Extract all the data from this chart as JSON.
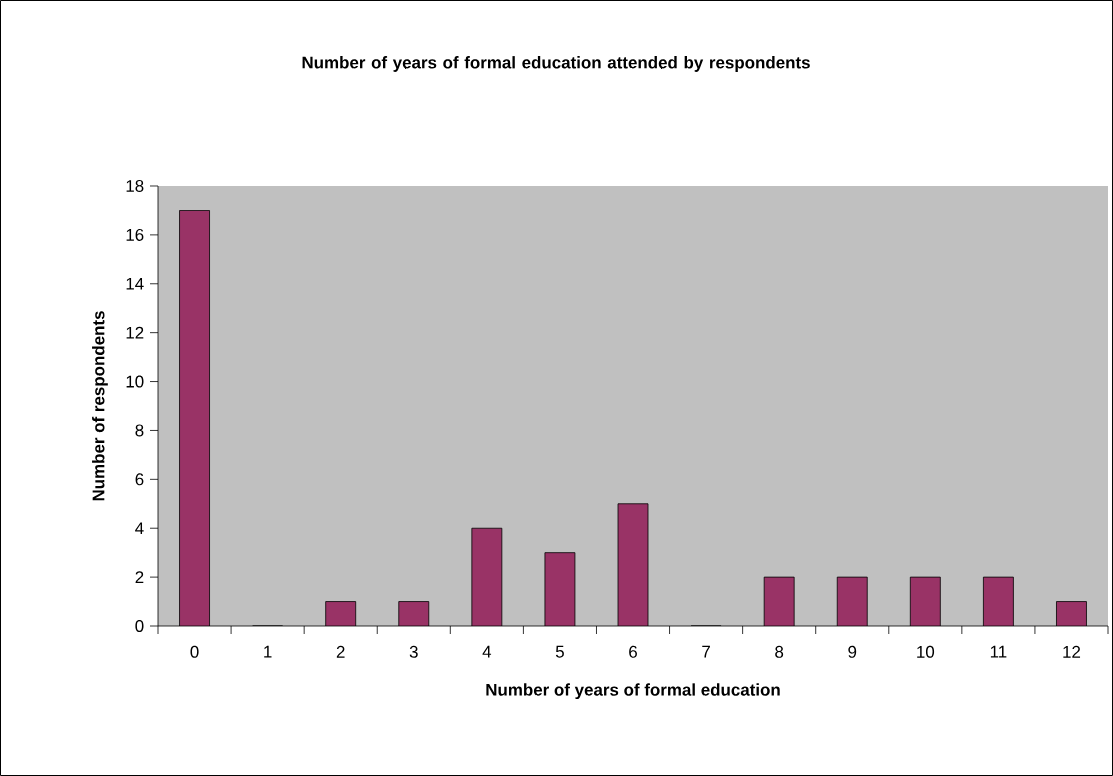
{
  "chart_data": {
    "type": "bar",
    "title": "Number of years of formal education attended by respondents",
    "xlabel": "Number of years of formal education",
    "ylabel": "Number of respondents",
    "categories": [
      "0",
      "1",
      "2",
      "3",
      "4",
      "5",
      "6",
      "7",
      "8",
      "9",
      "10",
      "11",
      "12"
    ],
    "values": [
      17,
      0,
      1,
      1,
      4,
      3,
      5,
      0,
      2,
      2,
      2,
      2,
      1
    ],
    "color": "#993366",
    "ylim": [
      0,
      18
    ],
    "yticks": [
      0,
      2,
      4,
      6,
      8,
      10,
      12,
      14,
      16,
      18
    ]
  }
}
